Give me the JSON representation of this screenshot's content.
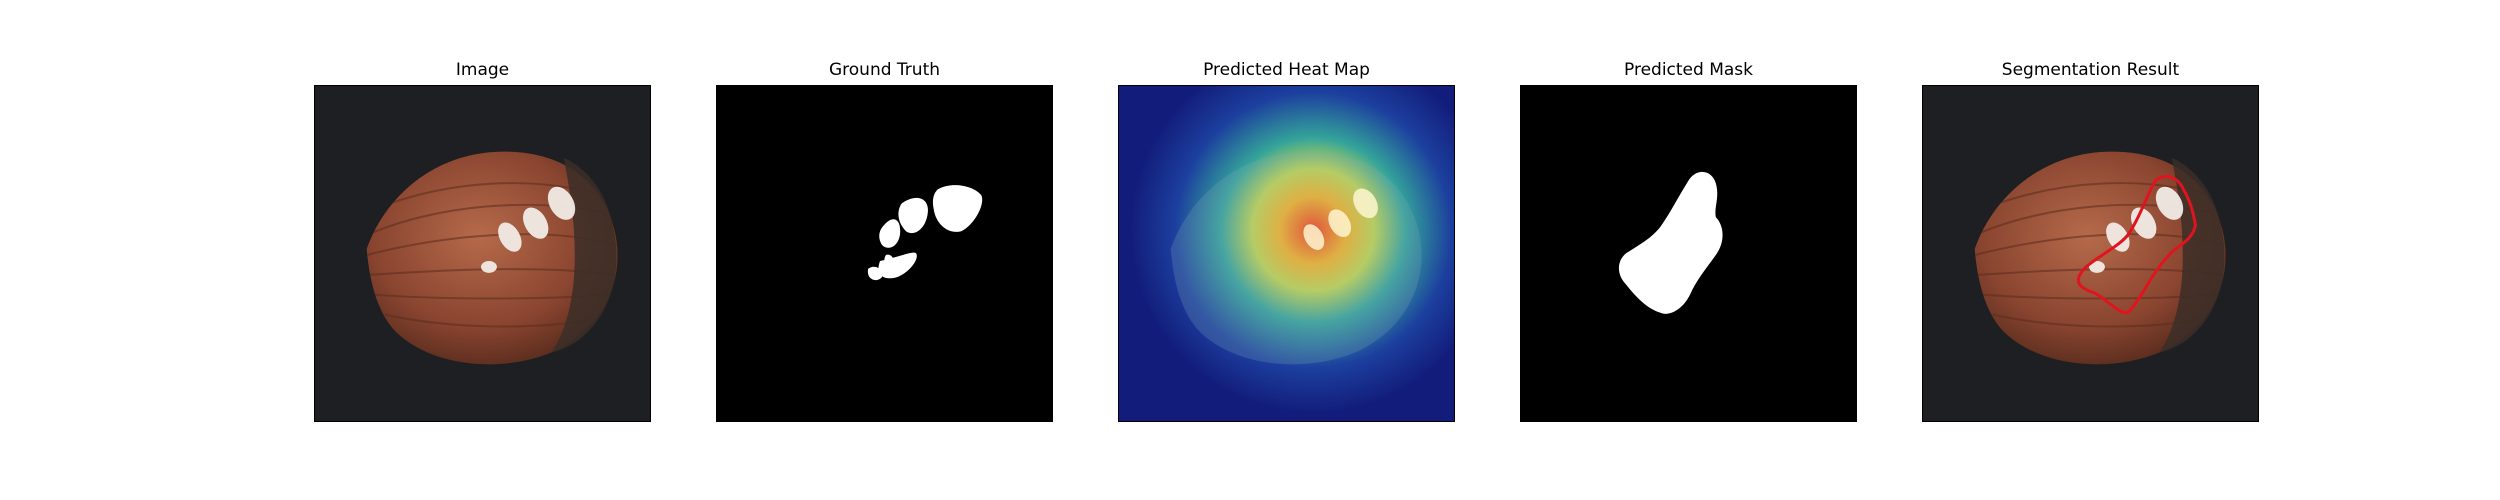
{
  "panels": [
    {
      "title": "Image"
    },
    {
      "title": "Ground Truth"
    },
    {
      "title": "Predicted Heat Map"
    },
    {
      "title": "Predicted Mask"
    },
    {
      "title": "Segmentation Result"
    }
  ],
  "colors": {
    "background": "#ffffff",
    "mask": "#ffffff",
    "mask_background": "#000000",
    "contour": "#e0141e"
  }
}
